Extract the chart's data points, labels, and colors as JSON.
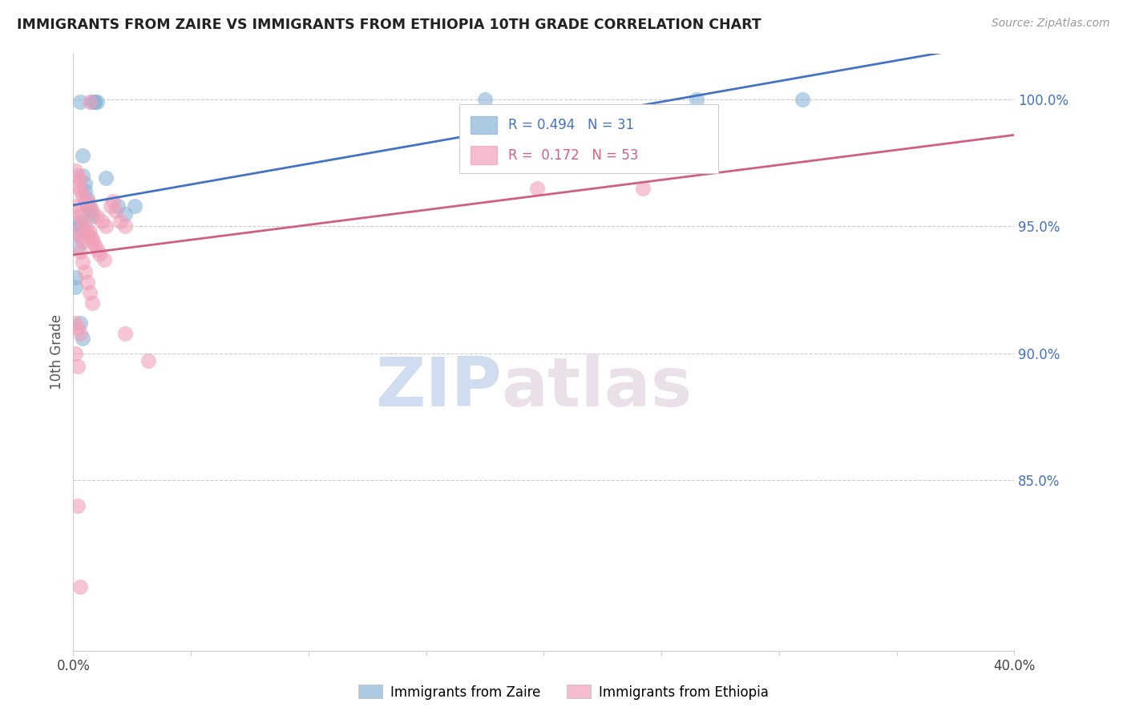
{
  "title": "IMMIGRANTS FROM ZAIRE VS IMMIGRANTS FROM ETHIOPIA 10TH GRADE CORRELATION CHART",
  "source": "Source: ZipAtlas.com",
  "ylabel": "10th Grade",
  "xlim": [
    0.0,
    0.4
  ],
  "ylim": [
    0.783,
    1.018
  ],
  "zaire_color": "#8ab4d8",
  "ethiopia_color": "#f0a0b8",
  "zaire_line_color": "#4472c4",
  "ethiopia_line_color": "#d06080",
  "ytick_vals": [
    0.85,
    0.9,
    0.95,
    1.0
  ],
  "ytick_labels": [
    "85.0%",
    "90.0%",
    "95.0%",
    "100.0%"
  ],
  "watermark_zip": "ZIP",
  "watermark_atlas": "atlas",
  "zaire_x": [
    0.003,
    0.008,
    0.009,
    0.009,
    0.01,
    0.004,
    0.004,
    0.005,
    0.005,
    0.006,
    0.006,
    0.007,
    0.007,
    0.008,
    0.003,
    0.003,
    0.003,
    0.004,
    0.002,
    0.002,
    0.001,
    0.001,
    0.003,
    0.004,
    0.019,
    0.014,
    0.026,
    0.31,
    0.265,
    0.175,
    0.022
  ],
  "zaire_y": [
    0.999,
    0.999,
    0.999,
    0.999,
    0.999,
    0.978,
    0.97,
    0.967,
    0.964,
    0.961,
    0.958,
    0.957,
    0.955,
    0.954,
    0.952,
    0.951,
    0.95,
    0.949,
    0.947,
    0.942,
    0.93,
    0.926,
    0.912,
    0.906,
    0.958,
    0.969,
    0.958,
    1.0,
    1.0,
    1.0,
    0.955
  ],
  "ethiopia_x": [
    0.007,
    0.001,
    0.002,
    0.003,
    0.002,
    0.003,
    0.004,
    0.005,
    0.001,
    0.002,
    0.003,
    0.004,
    0.005,
    0.006,
    0.007,
    0.008,
    0.009,
    0.01,
    0.011,
    0.013,
    0.006,
    0.007,
    0.008,
    0.01,
    0.012,
    0.014,
    0.002,
    0.003,
    0.004,
    0.003,
    0.004,
    0.005,
    0.006,
    0.007,
    0.008,
    0.001,
    0.002,
    0.003,
    0.001,
    0.002,
    0.017,
    0.016,
    0.018,
    0.02,
    0.022,
    0.007,
    0.008,
    0.022,
    0.032,
    0.002,
    0.242,
    0.197,
    0.003
  ],
  "ethiopia_y": [
    0.999,
    0.972,
    0.97,
    0.968,
    0.966,
    0.964,
    0.962,
    0.96,
    0.958,
    0.956,
    0.954,
    0.952,
    0.95,
    0.948,
    0.946,
    0.945,
    0.943,
    0.941,
    0.939,
    0.937,
    0.96,
    0.958,
    0.956,
    0.954,
    0.952,
    0.95,
    0.948,
    0.946,
    0.944,
    0.94,
    0.936,
    0.932,
    0.928,
    0.924,
    0.92,
    0.912,
    0.91,
    0.908,
    0.9,
    0.895,
    0.96,
    0.958,
    0.956,
    0.952,
    0.95,
    0.948,
    0.944,
    0.908,
    0.897,
    0.84,
    0.965,
    0.965,
    0.808
  ],
  "leg_r_zaire": "R = 0.494",
  "leg_n_zaire": "N = 31",
  "leg_r_ethiopia": "R =  0.172",
  "leg_n_ethiopia": "N = 53"
}
